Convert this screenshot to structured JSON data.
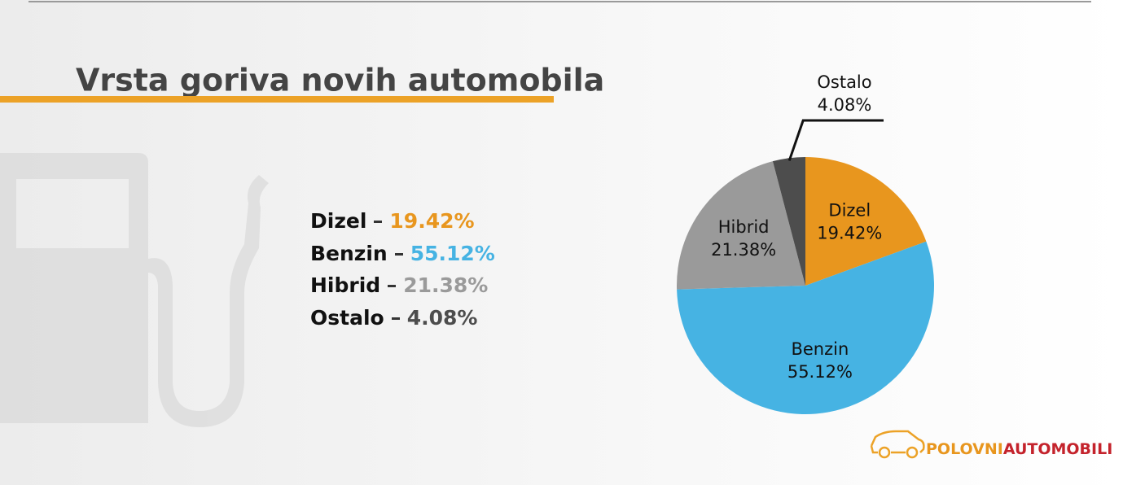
{
  "chart_data": {
    "type": "pie",
    "title": "Vrsta goriva novih automobila",
    "categories": [
      "Dizel",
      "Benzin",
      "Hibrid",
      "Ostalo"
    ],
    "values": [
      19.42,
      55.12,
      21.38,
      4.08
    ],
    "value_labels": [
      "19.42%",
      "55.12%",
      "21.38%",
      "4.08%"
    ],
    "colors": [
      "#e8961e",
      "#46b3e3",
      "#9a9a9a",
      "#4d4d4d"
    ]
  },
  "logo": {
    "first": "POLOVNI",
    "second": "AUTOMOBILI"
  }
}
